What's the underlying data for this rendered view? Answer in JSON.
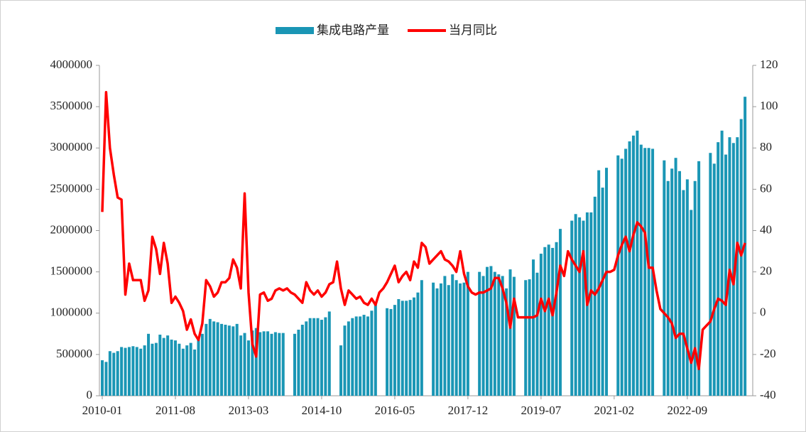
{
  "chart_data": {
    "type": "bar-line",
    "x": [
      "2010-01",
      "2010-02",
      "2010-03",
      "2010-04",
      "2010-05",
      "2010-06",
      "2010-07",
      "2010-08",
      "2010-09",
      "2010-10",
      "2010-11",
      "2010-12",
      "2011-01",
      "2011-02",
      "2011-03",
      "2011-04",
      "2011-05",
      "2011-06",
      "2011-07",
      "2011-08",
      "2011-09",
      "2011-10",
      "2011-11",
      "2011-12",
      "2012-01",
      "2012-02",
      "2012-03",
      "2012-04",
      "2012-05",
      "2012-06",
      "2012-07",
      "2012-08",
      "2012-09",
      "2012-10",
      "2012-11",
      "2012-12",
      "2013-01",
      "2013-02",
      "2013-03",
      "2013-04",
      "2013-05",
      "2013-06",
      "2013-07",
      "2013-08",
      "2013-09",
      "2013-10",
      "2013-11",
      "2013-12",
      "2014-01",
      "2014-02",
      "2014-03",
      "2014-04",
      "2014-05",
      "2014-06",
      "2014-07",
      "2014-08",
      "2014-09",
      "2014-10",
      "2014-11",
      "2014-12",
      "2015-01",
      "2015-02",
      "2015-03",
      "2015-04",
      "2015-05",
      "2015-06",
      "2015-07",
      "2015-08",
      "2015-09",
      "2015-10",
      "2015-11",
      "2015-12",
      "2016-01",
      "2016-02",
      "2016-03",
      "2016-04",
      "2016-05",
      "2016-06",
      "2016-07",
      "2016-08",
      "2016-09",
      "2016-10",
      "2016-11",
      "2016-12",
      "2017-01",
      "2017-02",
      "2017-03",
      "2017-04",
      "2017-05",
      "2017-06",
      "2017-07",
      "2017-08",
      "2017-09",
      "2017-10",
      "2017-11",
      "2017-12",
      "2018-01",
      "2018-02",
      "2018-03",
      "2018-04",
      "2018-05",
      "2018-06",
      "2018-07",
      "2018-08",
      "2018-09",
      "2018-10",
      "2018-11",
      "2018-12",
      "2019-01",
      "2019-02",
      "2019-03",
      "2019-04",
      "2019-05",
      "2019-06",
      "2019-07",
      "2019-08",
      "2019-09",
      "2019-10",
      "2019-11",
      "2019-12",
      "2020-01",
      "2020-02",
      "2020-03",
      "2020-04",
      "2020-05",
      "2020-06",
      "2020-07",
      "2020-08",
      "2020-09",
      "2020-10",
      "2020-11",
      "2020-12",
      "2021-01",
      "2021-02",
      "2021-03",
      "2021-04",
      "2021-05",
      "2021-06",
      "2021-07",
      "2021-08",
      "2021-09",
      "2021-10",
      "2021-11",
      "2021-12",
      "2022-01",
      "2022-02",
      "2022-03",
      "2022-04",
      "2022-05",
      "2022-06",
      "2022-07",
      "2022-08",
      "2022-09",
      "2022-10",
      "2022-11",
      "2022-12",
      "2023-01",
      "2023-02",
      "2023-03",
      "2023-04",
      "2023-05",
      "2023-06",
      "2023-07",
      "2023-08",
      "2023-09",
      "2023-10",
      "2023-11",
      "2023-12"
    ],
    "xticks": [
      "2010-01",
      "2011-08",
      "2013-03",
      "2014-10",
      "2016-05",
      "2017-12",
      "2019-07",
      "2021-02",
      "2022-09"
    ],
    "series": [
      {
        "name": "集成电路产量",
        "color": "#1a96b5",
        "type": "bar",
        "values": [
          430000,
          410000,
          540000,
          520000,
          540000,
          590000,
          580000,
          590000,
          600000,
          590000,
          570000,
          610000,
          750000,
          630000,
          640000,
          740000,
          700000,
          730000,
          680000,
          670000,
          630000,
          570000,
          610000,
          640000,
          560000,
          700000,
          750000,
          870000,
          930000,
          900000,
          890000,
          870000,
          860000,
          850000,
          840000,
          870000,
          730000,
          760000,
          670000,
          790000,
          820000,
          770000,
          780000,
          780000,
          750000,
          770000,
          760000,
          760000,
          null,
          null,
          750000,
          800000,
          860000,
          900000,
          940000,
          940000,
          940000,
          920000,
          950000,
          1020000,
          null,
          null,
          610000,
          850000,
          900000,
          940000,
          960000,
          960000,
          980000,
          960000,
          1030000,
          1130000,
          null,
          null,
          1060000,
          1050000,
          1100000,
          1170000,
          1150000,
          1150000,
          1160000,
          1190000,
          1250000,
          1400000,
          null,
          null,
          1370000,
          1300000,
          1360000,
          1450000,
          1340000,
          1470000,
          1400000,
          1360000,
          1370000,
          1500000,
          null,
          null,
          1500000,
          1450000,
          1560000,
          1570000,
          1500000,
          1470000,
          1450000,
          1300000,
          1530000,
          1440000,
          null,
          null,
          1400000,
          1410000,
          1650000,
          1490000,
          1720000,
          1800000,
          1830000,
          1790000,
          1860000,
          2020000,
          null,
          null,
          2120000,
          2200000,
          2160000,
          2120000,
          2220000,
          2220000,
          2410000,
          2730000,
          2520000,
          2760000,
          null,
          null,
          2910000,
          2870000,
          2990000,
          3080000,
          3150000,
          3210000,
          3040000,
          3000000,
          3000000,
          2990000,
          null,
          null,
          2850000,
          2600000,
          2750000,
          2880000,
          2720000,
          2490000,
          2620000,
          2250000,
          2600000,
          2840000,
          null,
          null,
          2940000,
          2810000,
          3070000,
          3210000,
          2920000,
          3130000,
          3060000,
          3130000,
          3350000,
          3620000
        ]
      },
      {
        "name": "当月同比",
        "color": "#ff0000",
        "type": "line",
        "axis": "y2",
        "values": [
          49,
          107,
          80,
          67,
          56,
          55,
          9,
          24,
          16,
          16,
          16,
          6,
          11,
          37,
          31,
          19,
          34,
          24,
          5,
          8,
          5,
          1,
          -8,
          -3,
          -10,
          -13,
          -5,
          16,
          13,
          8,
          10,
          15,
          15,
          17,
          26,
          22,
          12,
          58,
          10,
          -15,
          -21,
          9,
          10,
          6,
          7,
          11,
          12,
          11,
          12,
          10,
          9,
          7,
          5,
          15,
          11,
          9,
          11,
          8,
          10,
          14,
          15,
          25,
          12,
          4,
          11,
          9,
          7,
          8,
          5,
          4,
          7,
          4,
          10,
          12,
          15,
          19,
          23,
          15,
          18,
          20,
          16,
          25,
          22,
          34,
          32,
          24,
          26,
          28,
          30,
          26,
          25,
          23,
          20,
          30,
          19,
          13,
          10,
          9,
          10,
          10,
          11,
          12,
          17,
          17,
          12,
          5,
          -7,
          7,
          -2,
          -2,
          -2,
          -2,
          -2,
          -1,
          7,
          1,
          7,
          -1,
          10,
          23,
          18,
          30,
          26,
          23,
          20,
          30,
          4,
          11,
          9,
          12,
          16,
          20,
          20,
          21,
          28,
          33,
          37,
          30,
          38,
          44,
          42,
          39,
          22,
          22,
          11,
          2,
          0,
          -2,
          -5,
          -12,
          -10,
          -10,
          -17,
          -24,
          -17,
          -27,
          -8,
          -6,
          -4,
          2,
          7,
          6,
          4,
          21,
          14,
          34,
          28,
          34
        ]
      }
    ],
    "ylim": [
      0,
      4000000
    ],
    "yticks": [
      0,
      500000,
      1000000,
      1500000,
      2000000,
      2500000,
      3000000,
      3500000,
      4000000
    ],
    "y2lim": [
      -40,
      120
    ],
    "y2ticks": [
      -40,
      -20,
      0,
      20,
      40,
      60,
      80,
      100,
      120
    ],
    "legend": "top"
  }
}
